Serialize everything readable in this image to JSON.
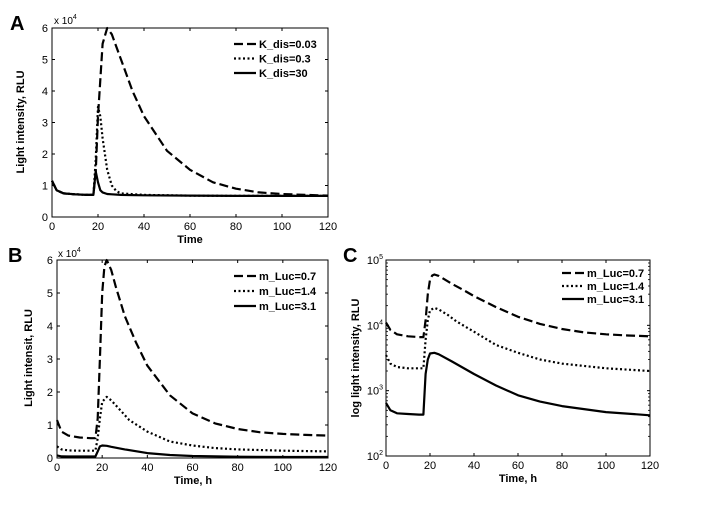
{
  "chart_data": [
    {
      "panel": "A",
      "type": "line",
      "xlabel": "Time",
      "ylabel": "Light intensity, RLU",
      "y_multiplier": "x 10",
      "y_multiplier_exp": "4",
      "xlim": [
        0,
        120
      ],
      "ylim": [
        0,
        6
      ],
      "yscale": "linear",
      "xticks": [
        "0",
        "20",
        "40",
        "60",
        "80",
        "100",
        "120"
      ],
      "yticks": [
        "0",
        "1",
        "2",
        "3",
        "4",
        "5",
        "6"
      ],
      "legend_position": "top-right",
      "series": [
        {
          "name": "K_dis=0.03",
          "style": "dashed",
          "x": [
            0,
            2,
            5,
            10,
            15,
            18,
            19,
            20,
            22,
            24,
            26,
            30,
            35,
            40,
            50,
            60,
            70,
            80,
            90,
            100,
            110,
            120
          ],
          "y": [
            1.15,
            0.85,
            0.75,
            0.72,
            0.7,
            0.7,
            1.4,
            3.2,
            5.5,
            6.0,
            5.8,
            5.0,
            4.0,
            3.2,
            2.1,
            1.5,
            1.1,
            0.9,
            0.78,
            0.73,
            0.7,
            0.68
          ]
        },
        {
          "name": "K_dis=0.3",
          "style": "dotted",
          "x": [
            0,
            2,
            5,
            10,
            15,
            18,
            19,
            20,
            21,
            22,
            24,
            26,
            28,
            30,
            40,
            60,
            80,
            100,
            120
          ],
          "y": [
            1.15,
            0.85,
            0.75,
            0.72,
            0.7,
            0.7,
            1.8,
            3.5,
            3.2,
            2.5,
            1.5,
            1.0,
            0.82,
            0.75,
            0.7,
            0.68,
            0.67,
            0.67,
            0.67
          ]
        },
        {
          "name": "K_dis=30",
          "style": "solid",
          "x": [
            0,
            2,
            5,
            10,
            15,
            18,
            19,
            20,
            21,
            22,
            24,
            26,
            30,
            40,
            60,
            80,
            100,
            120
          ],
          "y": [
            1.15,
            0.85,
            0.75,
            0.72,
            0.7,
            0.7,
            1.45,
            1.1,
            0.85,
            0.78,
            0.73,
            0.72,
            0.7,
            0.69,
            0.68,
            0.67,
            0.67,
            0.67
          ]
        }
      ]
    },
    {
      "panel": "B",
      "type": "line",
      "xlabel": "Time, h",
      "ylabel": "Light intensit, RLU",
      "y_multiplier": "x 10",
      "y_multiplier_exp": "4",
      "xlim": [
        0,
        120
      ],
      "ylim": [
        0,
        6
      ],
      "yscale": "linear",
      "xticks": [
        "0",
        "20",
        "40",
        "60",
        "80",
        "100",
        "120"
      ],
      "yticks": [
        "0",
        "1",
        "2",
        "3",
        "4",
        "5",
        "6"
      ],
      "legend_position": "top-right",
      "series": [
        {
          "name": "m_Luc=0.7",
          "style": "dashed",
          "x": [
            0,
            2,
            5,
            10,
            15,
            17,
            18,
            19,
            20,
            21,
            22,
            24,
            26,
            30,
            35,
            40,
            50,
            60,
            70,
            80,
            90,
            100,
            110,
            120
          ],
          "y": [
            1.15,
            0.8,
            0.68,
            0.62,
            0.6,
            0.6,
            1.2,
            3.0,
            5.0,
            5.8,
            6.0,
            5.7,
            5.2,
            4.3,
            3.5,
            2.8,
            1.9,
            1.35,
            1.05,
            0.88,
            0.78,
            0.73,
            0.7,
            0.68
          ]
        },
        {
          "name": "m_Luc=1.4",
          "style": "dotted",
          "x": [
            0,
            2,
            5,
            10,
            15,
            17,
            18,
            19,
            20,
            22,
            24,
            28,
            32,
            40,
            50,
            60,
            70,
            80,
            100,
            120
          ],
          "y": [
            0.35,
            0.26,
            0.23,
            0.22,
            0.22,
            0.22,
            0.6,
            1.2,
            1.7,
            1.85,
            1.75,
            1.45,
            1.15,
            0.8,
            0.5,
            0.38,
            0.3,
            0.26,
            0.22,
            0.2
          ]
        },
        {
          "name": "m_Luc=3.1",
          "style": "solid",
          "x": [
            0,
            2,
            5,
            10,
            15,
            17,
            18,
            19,
            20,
            22,
            24,
            30,
            40,
            50,
            60,
            80,
            100,
            120
          ],
          "y": [
            0.08,
            0.05,
            0.045,
            0.045,
            0.045,
            0.045,
            0.2,
            0.35,
            0.38,
            0.37,
            0.34,
            0.26,
            0.15,
            0.09,
            0.06,
            0.04,
            0.03,
            0.03
          ]
        }
      ]
    },
    {
      "panel": "C",
      "type": "line",
      "xlabel": "Time, h",
      "ylabel": "log light intensity, RLU",
      "xlim": [
        0,
        120
      ],
      "ylim": [
        100,
        100000
      ],
      "yscale": "log",
      "xticks": [
        "0",
        "20",
        "40",
        "60",
        "80",
        "100",
        "120"
      ],
      "ytick_base": "10",
      "ytick_exps": [
        "2",
        "3",
        "4",
        "5"
      ],
      "legend_position": "top-right",
      "series": [
        {
          "name": "m_Luc=0.7",
          "style": "dashed",
          "x": [
            0,
            2,
            5,
            10,
            15,
            17,
            18,
            19,
            20,
            21,
            22,
            24,
            26,
            30,
            35,
            40,
            50,
            60,
            70,
            80,
            90,
            100,
            110,
            120
          ],
          "y": [
            11000,
            8500,
            7300,
            6800,
            6600,
            6600,
            12000,
            30000,
            50000,
            58000,
            60000,
            57000,
            52000,
            43000,
            35000,
            28000,
            19000,
            13500,
            10500,
            8800,
            7800,
            7300,
            7000,
            6800
          ]
        },
        {
          "name": "m_Luc=1.4",
          "style": "dotted",
          "x": [
            0,
            2,
            5,
            10,
            15,
            17,
            18,
            19,
            20,
            22,
            24,
            28,
            32,
            40,
            50,
            60,
            70,
            80,
            100,
            120
          ],
          "y": [
            3500,
            2600,
            2300,
            2200,
            2200,
            2200,
            6000,
            12000,
            17000,
            18500,
            17500,
            14500,
            11500,
            8000,
            5000,
            3800,
            3000,
            2600,
            2200,
            2000
          ]
        },
        {
          "name": "m_Luc=3.1",
          "style": "solid",
          "x": [
            0,
            2,
            5,
            10,
            15,
            17,
            18,
            19,
            20,
            22,
            24,
            30,
            40,
            50,
            60,
            70,
            80,
            100,
            120
          ],
          "y": [
            650,
            500,
            450,
            440,
            430,
            430,
            1800,
            3000,
            3700,
            3800,
            3600,
            2800,
            1800,
            1200,
            850,
            680,
            580,
            470,
            420
          ]
        }
      ]
    }
  ]
}
